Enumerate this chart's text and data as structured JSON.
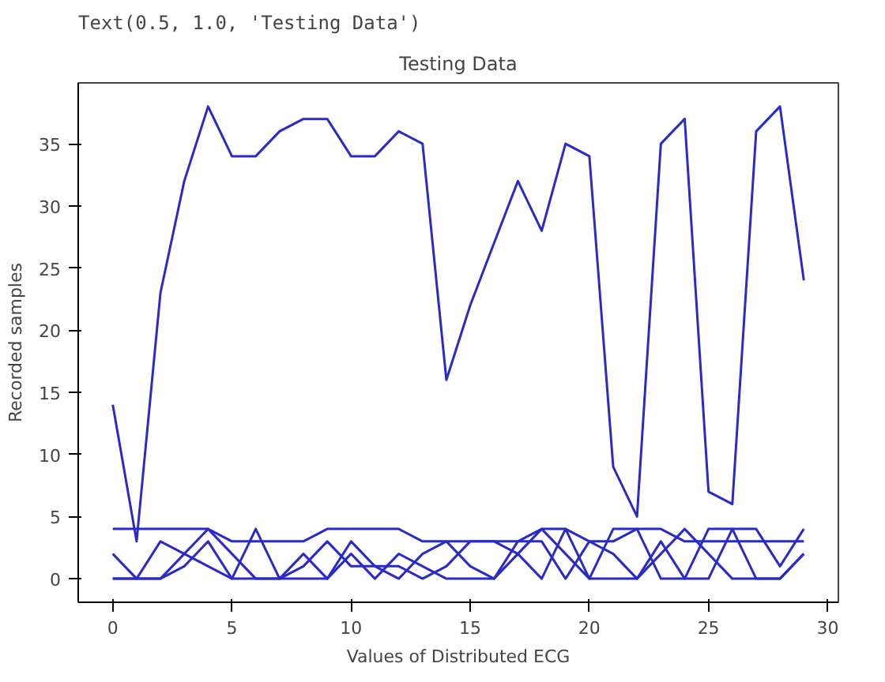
{
  "chart_data": {
    "type": "line",
    "title": "Testing Data",
    "xlabel": "Values of Distributed ECG",
    "ylabel": "Recorded samples",
    "annotations": [
      "Text(0.5, 1.0, 'Testing Data')"
    ],
    "x": [
      0,
      1,
      2,
      3,
      4,
      5,
      6,
      7,
      8,
      9,
      10,
      11,
      12,
      13,
      14,
      15,
      16,
      17,
      18,
      19,
      20,
      21,
      22,
      23,
      24,
      25,
      26,
      27,
      28,
      29
    ],
    "series": [
      {
        "color": "#2a2ac8",
        "values": [
          14,
          3,
          23,
          32,
          38,
          34,
          34,
          36,
          37,
          37,
          34,
          34,
          36,
          35,
          16,
          22,
          27,
          32,
          28,
          35,
          34,
          9,
          5,
          35,
          37,
          7,
          6,
          36,
          38,
          24
        ]
      },
      {
        "color": "#2a2ac8",
        "values": [
          4,
          4,
          4,
          4,
          4,
          3,
          3,
          3,
          3,
          4,
          4,
          4,
          4,
          3,
          3,
          3,
          3,
          3,
          4,
          4,
          3,
          3,
          4,
          4,
          3,
          3,
          3,
          3,
          3,
          3
        ]
      },
      {
        "color": "#2a2ac8",
        "values": [
          2,
          0,
          0,
          2,
          4,
          2,
          0,
          0,
          0,
          0,
          2,
          0,
          2,
          1,
          0,
          0,
          0,
          2,
          4,
          2,
          0,
          0,
          0,
          2,
          4,
          2,
          0,
          0,
          0,
          2
        ]
      },
      {
        "color": "#2a2ac8",
        "values": [
          0,
          0,
          3,
          2,
          1,
          0,
          4,
          0,
          2,
          0,
          3,
          1,
          0,
          2,
          3,
          1,
          0,
          3,
          3,
          0,
          3,
          2,
          0,
          3,
          0,
          0,
          4,
          4,
          1,
          4
        ]
      },
      {
        "color": "#2a2ac8",
        "values": [
          0,
          0,
          0,
          1,
          3,
          0,
          0,
          0,
          1,
          3,
          1,
          1,
          1,
          0,
          1,
          3,
          3,
          2,
          0,
          4,
          0,
          4,
          4,
          0,
          0,
          4,
          4,
          0,
          0,
          2
        ]
      }
    ],
    "xlim": [
      -1.45,
      30.45
    ],
    "ylim": [
      -1.9,
      39.9
    ],
    "xticks": [
      0,
      5,
      10,
      15,
      20,
      25,
      30
    ],
    "yticks": [
      0,
      5,
      10,
      15,
      20,
      25,
      30,
      35
    ],
    "grid": false
  }
}
